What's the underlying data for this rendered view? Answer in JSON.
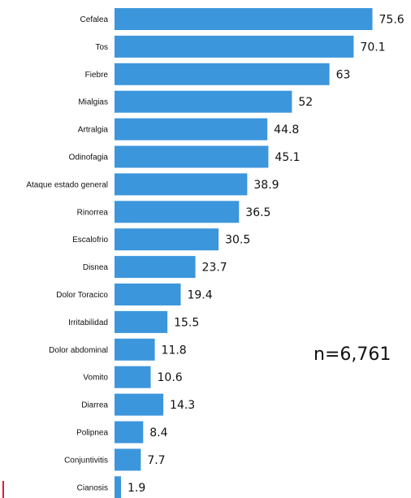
{
  "chart_data": {
    "type": "bar",
    "orientation": "horizontal",
    "categories": [
      "Cefalea",
      "Tos",
      "Fiebre",
      "Mialgias",
      "Artralgia",
      "Odinofagia",
      "Ataque estado general",
      "Rinorrea",
      "Escalofrio",
      "Disnea",
      "Dolor Toracico",
      "Irritabilidad",
      "Dolor abdominal",
      "Vomito",
      "Diarrea",
      "Polipnea",
      "Conjuntivitis",
      "Cianosis"
    ],
    "values": [
      75.6,
      70.1,
      63,
      52,
      44.8,
      45.1,
      38.9,
      36.5,
      30.5,
      23.7,
      19.4,
      15.5,
      11.8,
      10.6,
      14.3,
      8.4,
      7.7,
      1.9
    ],
    "value_labels": [
      "75.6",
      "70.1",
      "63",
      "52",
      "44.8",
      "45.1",
      "38.9",
      "36.5",
      "30.5",
      "23.7",
      "19.4",
      "15.5",
      "11.8",
      "10.6",
      "14.3",
      "8.4",
      "7.7",
      "1.9"
    ],
    "xlim": [
      0,
      80
    ],
    "annotation": "n=6,761",
    "bar_color": "#3c96dc",
    "marker_color": "#e8192c",
    "grid": false,
    "legend": false
  }
}
